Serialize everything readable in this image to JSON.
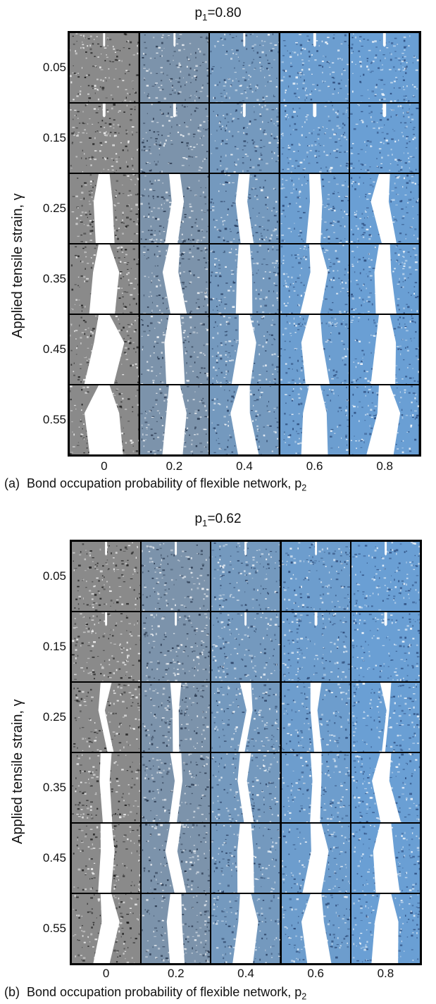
{
  "figure": {
    "y_axis_label": "Applied tensile strain, γ",
    "x_axis_label": "Bond occupation probability of flexible network, p",
    "x_axis_label_sub": "2",
    "p1_prefix": "p",
    "p1_sub": "1"
  },
  "panels": [
    {
      "id": "a",
      "tag": "(a)",
      "p1_value": "=0.80",
      "row_labels": [
        "0.05",
        "0.15",
        "0.25",
        "0.35",
        "0.45",
        "0.55"
      ],
      "col_labels": [
        "0",
        "0.2",
        "0.4",
        "0.6",
        "0.8"
      ],
      "col_color_tint": [
        0.0,
        0.45,
        0.7,
        0.95,
        1.0
      ],
      "crack_width": [
        [
          0.03,
          0.03,
          0.03,
          0.04,
          0.04
        ],
        [
          0.04,
          0.04,
          0.04,
          0.05,
          0.05
        ],
        [
          0.3,
          0.2,
          0.2,
          0.22,
          0.22
        ],
        [
          0.4,
          0.25,
          0.25,
          0.3,
          0.3
        ],
        [
          0.45,
          0.28,
          0.28,
          0.35,
          0.35
        ],
        [
          0.5,
          0.3,
          0.3,
          0.38,
          0.38
        ]
      ]
    },
    {
      "id": "b",
      "tag": "(b)",
      "p1_value": "=0.62",
      "row_labels": [
        "0.05",
        "0.15",
        "0.25",
        "0.35",
        "0.45",
        "0.55"
      ],
      "col_labels": [
        "0",
        "0.2",
        "0.4",
        "0.6",
        "0.8"
      ],
      "col_color_tint": [
        0.0,
        0.45,
        0.7,
        0.9,
        1.0
      ],
      "crack_width": [
        [
          0.02,
          0.02,
          0.02,
          0.03,
          0.03
        ],
        [
          0.03,
          0.03,
          0.03,
          0.04,
          0.04
        ],
        [
          0.1,
          0.1,
          0.1,
          0.12,
          0.05
        ],
        [
          0.15,
          0.12,
          0.15,
          0.15,
          0.3
        ],
        [
          0.2,
          0.18,
          0.25,
          0.28,
          0.35
        ],
        [
          0.25,
          0.22,
          0.3,
          0.35,
          0.38
        ]
      ]
    }
  ]
}
